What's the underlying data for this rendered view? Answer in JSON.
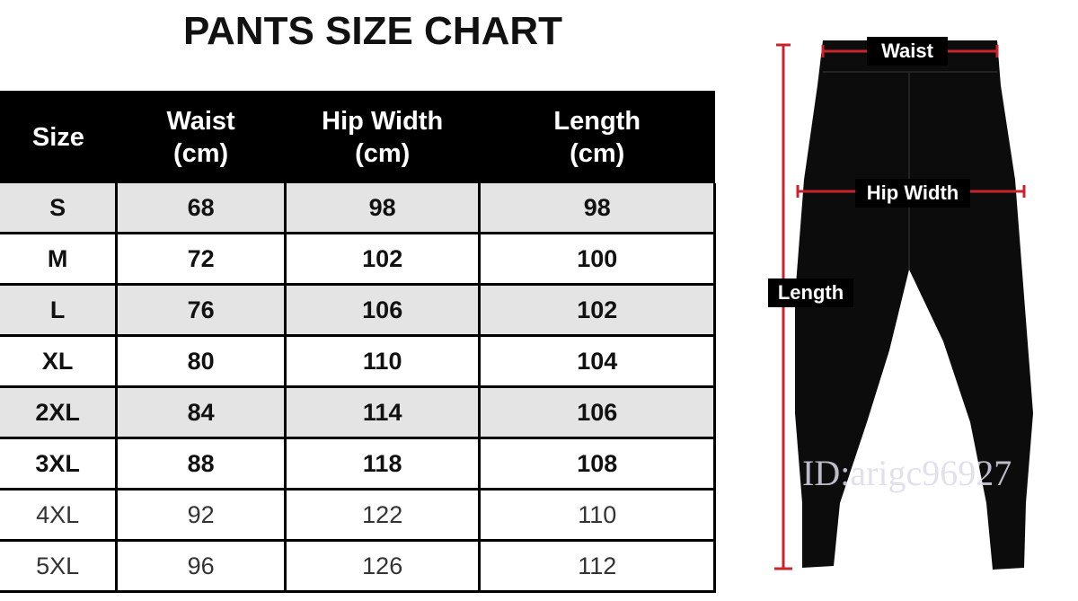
{
  "title": "PANTS SIZE CHART",
  "table": {
    "headers": [
      [
        "Size",
        ""
      ],
      [
        "Waist",
        "(cm)"
      ],
      [
        "Hip Width",
        "(cm)"
      ],
      [
        "Length",
        "(cm)"
      ]
    ],
    "rows": [
      [
        "S",
        "68",
        "98",
        "98"
      ],
      [
        "M",
        "72",
        "102",
        "100"
      ],
      [
        "L",
        "76",
        "106",
        "102"
      ],
      [
        "XL",
        "80",
        "110",
        "104"
      ],
      [
        "2XL",
        "84",
        "114",
        "106"
      ],
      [
        "3XL",
        "88",
        "118",
        "108"
      ],
      [
        "4XL",
        "92",
        "122",
        "110"
      ],
      [
        "5XL",
        "96",
        "126",
        "112"
      ]
    ]
  },
  "diagram": {
    "waist_label": "Waist",
    "hip_label": "Hip Width",
    "length_label": "Length",
    "measure_color": "#c8242b"
  },
  "watermark": "ID:arigc96927"
}
